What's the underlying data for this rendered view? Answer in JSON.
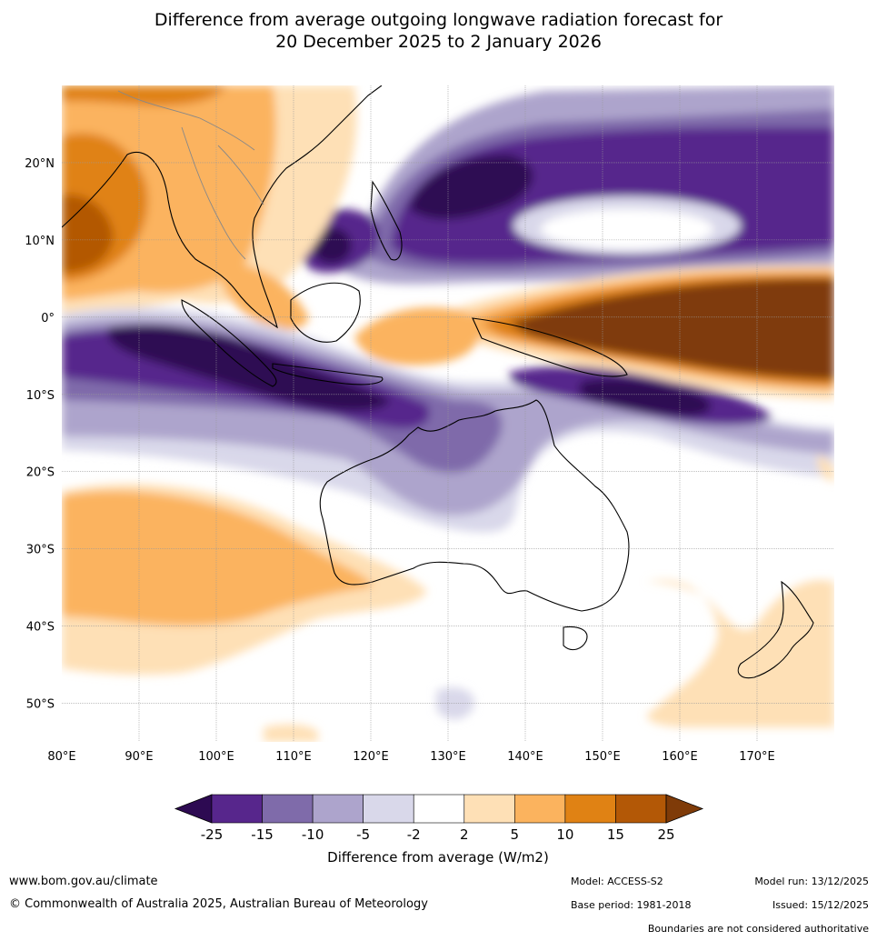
{
  "title": {
    "line1": "Difference from average outgoing longwave radiation forecast for",
    "line2": "20 December 2025 to 2 January 2026"
  },
  "map": {
    "lat_labels": [
      "20°N",
      "10°N",
      "0°",
      "10°S",
      "20°S",
      "30°S",
      "40°S",
      "50°S"
    ],
    "lon_labels": [
      "80°E",
      "90°E",
      "100°E",
      "110°E",
      "120°E",
      "130°E",
      "140°E",
      "150°E",
      "160°E",
      "170°E"
    ],
    "lat_values": [
      20,
      10,
      0,
      -10,
      -20,
      -30,
      -40,
      -50
    ],
    "lon_values": [
      80,
      90,
      100,
      110,
      120,
      130,
      140,
      150,
      160,
      170
    ],
    "extent": {
      "lon_min": 80,
      "lon_max": 180,
      "lat_min": -55,
      "lat_max": 30
    }
  },
  "colorbar": {
    "ticks": [
      "-25",
      "-15",
      "-10",
      "-5",
      "-2",
      "2",
      "5",
      "10",
      "15",
      "25"
    ],
    "colors": [
      "#2d0a52",
      "#57268c",
      "#7f6baa",
      "#ada4cc",
      "#d9d8ea",
      "#ffffff",
      "#fee0b6",
      "#fbb35e",
      "#e08214",
      "#b35806",
      "#7f3b08"
    ],
    "label": "Difference from average (W/m2)"
  },
  "footer": {
    "url": "www.bom.gov.au/climate",
    "copyright": "© Commonwealth of Australia 2025, Australian Bureau of Meteorology",
    "model": "Model: ACCESS-S2",
    "base_period": "Base period: 1981-2018",
    "model_run": "Model run: 13/12/2025",
    "issued": "Issued: 15/12/2025",
    "disclaimer": "Boundaries are not considered authoritative"
  }
}
